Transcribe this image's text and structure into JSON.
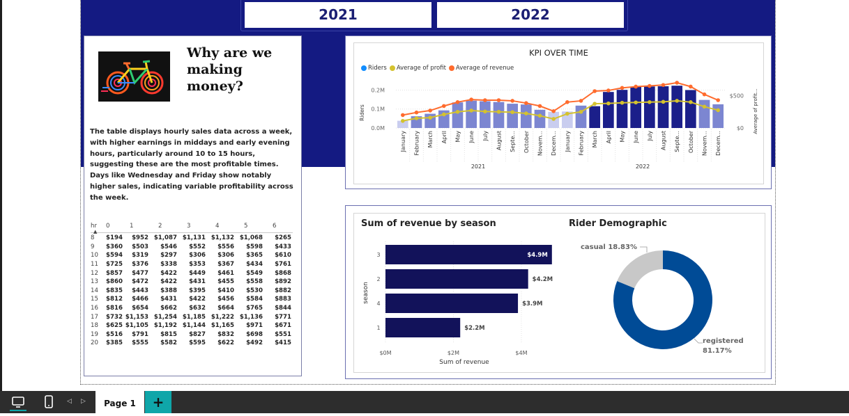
{
  "slicer": {
    "year_2021": "2021",
    "year_2022": "2022"
  },
  "left_card": {
    "heading": "Why are we making money?",
    "description": "The table displays hourly sales data across a week, with higher earnings in middays and early evening hours, particularly around 10 to 15 hours, suggesting these are the most profitable times. Days like Wednesday and Friday show notably higher sales, indicating variable profitability across the week."
  },
  "matrix": {
    "row_header": "hr",
    "columns": [
      "0",
      "1",
      "2",
      "3",
      "4",
      "5",
      "6"
    ],
    "rows": [
      {
        "hr": "8",
        "cells": [
          "$194",
          "$952",
          "$1,087",
          "$1,131",
          "$1,132",
          "$1,068",
          "$265"
        ]
      },
      {
        "hr": "9",
        "cells": [
          "$360",
          "$503",
          "$546",
          "$552",
          "$556",
          "$598",
          "$433"
        ]
      },
      {
        "hr": "10",
        "cells": [
          "$594",
          "$319",
          "$297",
          "$306",
          "$306",
          "$365",
          "$610"
        ]
      },
      {
        "hr": "11",
        "cells": [
          "$725",
          "$376",
          "$338",
          "$353",
          "$367",
          "$434",
          "$761"
        ]
      },
      {
        "hr": "12",
        "cells": [
          "$857",
          "$477",
          "$422",
          "$449",
          "$461",
          "$549",
          "$868"
        ]
      },
      {
        "hr": "13",
        "cells": [
          "$860",
          "$472",
          "$422",
          "$431",
          "$455",
          "$558",
          "$892"
        ]
      },
      {
        "hr": "14",
        "cells": [
          "$835",
          "$443",
          "$388",
          "$395",
          "$410",
          "$530",
          "$882"
        ]
      },
      {
        "hr": "15",
        "cells": [
          "$812",
          "$466",
          "$431",
          "$422",
          "$456",
          "$584",
          "$883"
        ]
      },
      {
        "hr": "16",
        "cells": [
          "$816",
          "$654",
          "$662",
          "$632",
          "$664",
          "$765",
          "$844"
        ]
      },
      {
        "hr": "17",
        "cells": [
          "$732",
          "$1,153",
          "$1,254",
          "$1,185",
          "$1,222",
          "$1,136",
          "$771"
        ]
      },
      {
        "hr": "18",
        "cells": [
          "$625",
          "$1,105",
          "$1,192",
          "$1,144",
          "$1,165",
          "$971",
          "$671"
        ]
      },
      {
        "hr": "19",
        "cells": [
          "$516",
          "$791",
          "$815",
          "$827",
          "$832",
          "$698",
          "$551"
        ]
      },
      {
        "hr": "20",
        "cells": [
          "$385",
          "$555",
          "$582",
          "$595",
          "$622",
          "$492",
          "$415"
        ]
      }
    ]
  },
  "chart_data": [
    {
      "type": "bar",
      "title": "KPI OVER TIME",
      "xlabel": "",
      "ylabel": "Riders",
      "y2label": "Average of profit...",
      "legend_position": "top-left",
      "legend": [
        "Riders",
        "Average of profit",
        "Average of revenue"
      ],
      "colors": {
        "Riders": "#118dff",
        "Average of profit": "#d4c22f",
        "Average of revenue": "#ff6b2d",
        "bars": "#7c86d1",
        "bars_dark": "#1b1f8a"
      },
      "categories": [
        "January",
        "February",
        "March",
        "April",
        "May",
        "June",
        "July",
        "August",
        "Septe...",
        "October",
        "Novem...",
        "Decem...",
        "January",
        "February",
        "March",
        "April",
        "May",
        "June",
        "July",
        "August",
        "Septe...",
        "October",
        "Novem...",
        "Decem..."
      ],
      "x_groups": [
        "2021",
        "2021",
        "2021",
        "2021",
        "2021",
        "2021",
        "2021",
        "2021",
        "2021",
        "2021",
        "2021",
        "2021",
        "2022",
        "2022",
        "2022",
        "2022",
        "2022",
        "2022",
        "2022",
        "2022",
        "2022",
        "2022",
        "2022",
        "2022"
      ],
      "group_labels": [
        "2021",
        "2022"
      ],
      "y_ticks": [
        "0.0M",
        "0.1M",
        "0.2M"
      ],
      "y2_ticks": [
        "$0",
        "$500"
      ],
      "ylim": [
        0,
        0.22
      ],
      "y2lim": [
        0,
        1000
      ],
      "series": [
        {
          "name": "Riders",
          "values": [
            0.038,
            0.062,
            0.075,
            0.093,
            0.135,
            0.144,
            0.141,
            0.137,
            0.128,
            0.124,
            0.096,
            0.085,
            0.087,
            0.118,
            0.115,
            0.19,
            0.201,
            0.217,
            0.219,
            0.22,
            0.223,
            0.2,
            0.148,
            0.125
          ]
        },
        {
          "name": "Average of profit",
          "values": [
            110,
            150,
            160,
            210,
            250,
            270,
            255,
            250,
            245,
            225,
            190,
            140,
            220,
            250,
            375,
            380,
            390,
            395,
            400,
            405,
            420,
            400,
            330,
            275
          ]
        },
        {
          "name": "Average of revenue",
          "values": [
            200,
            240,
            270,
            340,
            400,
            440,
            430,
            430,
            420,
            385,
            340,
            260,
            400,
            420,
            570,
            580,
            620,
            640,
            650,
            665,
            700,
            640,
            520,
            430
          ]
        }
      ]
    },
    {
      "type": "bar",
      "title": "Sum of revenue by season",
      "xlabel": "Sum of revenue",
      "ylabel": "season",
      "orientation": "horizontal",
      "categories": [
        "3",
        "2",
        "4",
        "1"
      ],
      "values": [
        4.9,
        4.2,
        3.9,
        2.2
      ],
      "data_labels": [
        "$4.9M",
        "$4.2M",
        "$3.9M",
        "$2.2M"
      ],
      "x_ticks": [
        "$0M",
        "$2M",
        "$4M"
      ],
      "xlim": [
        0,
        5.2
      ],
      "colors": {
        "bars": "#12125a"
      }
    },
    {
      "type": "pie",
      "title": "Rider Demographic",
      "categories": [
        "casual",
        "registered"
      ],
      "values": [
        18.83,
        81.17
      ],
      "data_labels": [
        "casual 18.83%",
        "registered 81.17%"
      ],
      "colors": {
        "casual": "#c8c8c8",
        "registered": "#004b96"
      }
    }
  ],
  "taskbar": {
    "page_label": "Page 1",
    "add_label": "+"
  }
}
